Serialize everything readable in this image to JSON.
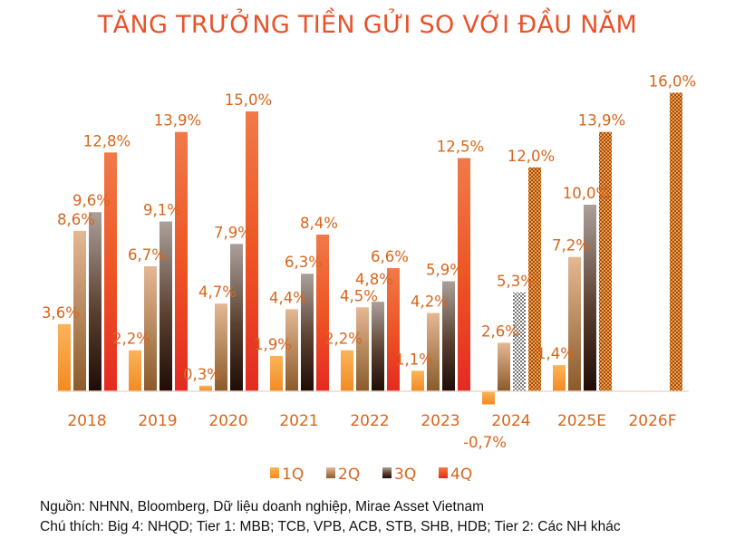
{
  "chart_data": {
    "type": "bar",
    "title": "TĂNG TRƯỞNG TIỀN GỬI SO VỚI ĐẦU NĂM",
    "categories": [
      "2018",
      "2019",
      "2020",
      "2021",
      "2022",
      "2023",
      "2024",
      "2025E",
      "2026F"
    ],
    "series": [
      {
        "name": "1Q",
        "values": [
          3.6,
          2.2,
          0.3,
          1.9,
          2.2,
          1.1,
          -0.7,
          1.4,
          null
        ],
        "labels": [
          "3,6%",
          "2,2%",
          "0,3%",
          "1,9%",
          "2,2%",
          "1,1%",
          "-0,7%",
          "1,4%",
          null
        ]
      },
      {
        "name": "2Q",
        "values": [
          8.6,
          6.7,
          4.7,
          4.4,
          4.5,
          4.2,
          2.6,
          7.2,
          null
        ],
        "labels": [
          "8,6%",
          "6,7%",
          "4,7%",
          "4,4%",
          "4,5%",
          "4,2%",
          "2,6%",
          "7,2%",
          null
        ]
      },
      {
        "name": "3Q",
        "values": [
          9.6,
          9.1,
          7.9,
          6.3,
          4.8,
          5.9,
          5.3,
          10.0,
          null
        ],
        "labels": [
          "9,6%",
          "9,1%",
          "7,9%",
          "6,3%",
          "4,8%",
          "5,9%",
          "5,3%",
          "10,0%",
          null
        ]
      },
      {
        "name": "4Q",
        "values": [
          12.8,
          13.9,
          15.0,
          8.4,
          6.6,
          12.5,
          12.0,
          13.9,
          16.0
        ],
        "labels": [
          "12,8%",
          "13,9%",
          "15,0%",
          "8,4%",
          "6,6%",
          "12,5%",
          "12,0%",
          "13,9%",
          "16,0%"
        ]
      }
    ],
    "patterned_bars": [
      [
        "2024",
        "3Q"
      ],
      [
        "2024",
        "4Q"
      ],
      [
        "2025E",
        "4Q"
      ],
      [
        "2026F",
        "4Q"
      ]
    ],
    "ylim": [
      -1,
      16
    ],
    "grid": false,
    "legend": "bottom",
    "colors": {
      "1Q": "#f7a23c",
      "2Q": "#d9a97c",
      "3Q": "#3a2418",
      "4Q": "#ea4b2a",
      "label": "#d8651c",
      "title": "#e8532b"
    }
  },
  "source": "Nguồn: NHNN, Bloomberg, Dữ liệu doanh nghiệp, Mirae Asset Vietnam",
  "note": "Chú thích: Big 4: NHQD; Tier 1: MBB; TCB, VPB, ACB, STB, SHB, HDB; Tier 2: Các NH khác"
}
